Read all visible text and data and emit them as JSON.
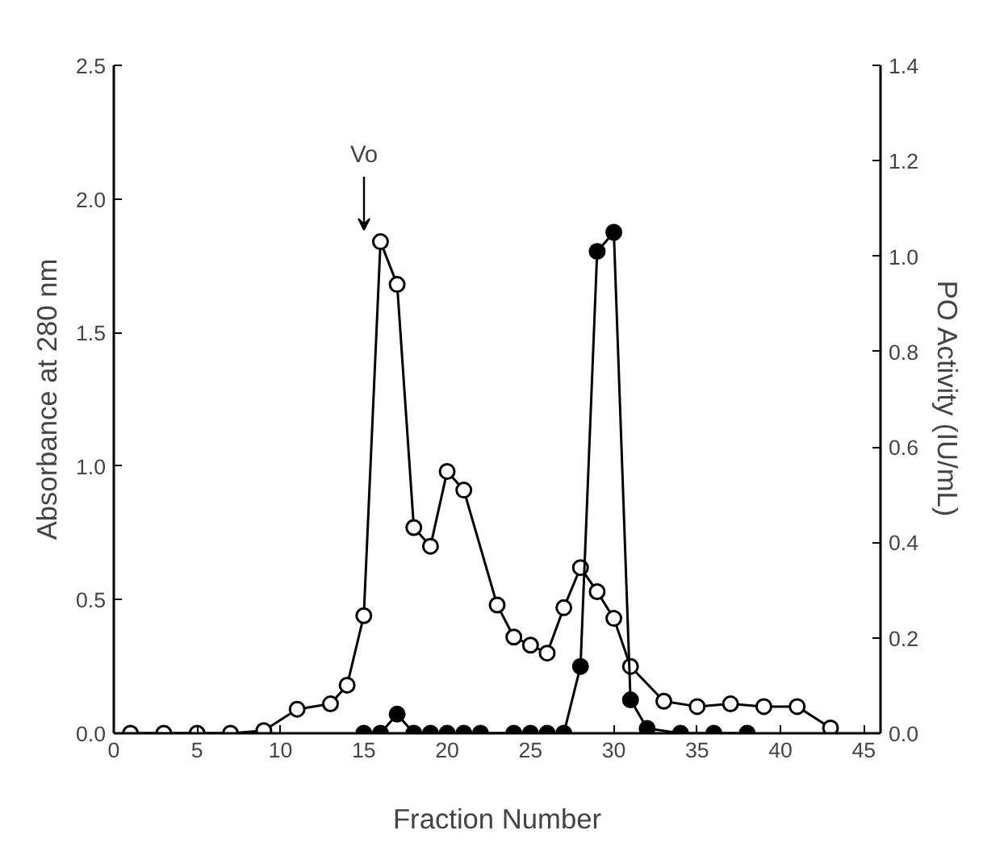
{
  "chart_data": {
    "type": "line",
    "xlabel": "Fraction Number",
    "ylabel": "Absorbance at 280 nm",
    "y2label": "PO Activity (IU/mL)",
    "xlim": [
      0,
      46
    ],
    "xticks": [
      0,
      5,
      10,
      15,
      20,
      25,
      30,
      35,
      40,
      45
    ],
    "ylim": [
      0,
      2.5
    ],
    "yticks": [
      {
        "value": 0,
        "label": "0.0"
      },
      0.5,
      {
        "value": 1,
        "label": "1.0"
      },
      1.5,
      {
        "value": 2,
        "label": "2.0"
      },
      2.5
    ],
    "y2lim": [
      0,
      1.4
    ],
    "y2ticks": [
      {
        "value": 0,
        "label": "0.0"
      },
      0.2,
      0.4,
      0.6,
      0.8,
      {
        "value": 1,
        "label": "1.0"
      },
      1.2,
      1.4
    ],
    "marker": "circle",
    "line_style": "solid",
    "annotations": [
      "Vo"
    ],
    "series": [
      {
        "color": "#000000",
        "x": [
          1,
          3,
          5,
          7,
          9,
          11,
          13,
          14,
          15,
          16,
          17,
          18,
          19,
          20,
          21,
          23,
          24,
          25,
          26,
          27,
          28,
          29,
          30,
          31,
          33,
          35,
          37,
          39,
          41,
          43
        ],
        "values": [
          0,
          0,
          0,
          0,
          0.01,
          0.09,
          0.11,
          0.18,
          0.44,
          1.84,
          1.68,
          0.77,
          0.7,
          0.98,
          0.91,
          0.48,
          0.36,
          0.33,
          0.3,
          0.47,
          0.62,
          0.53,
          0.43,
          0.25,
          0.12,
          0.1,
          0.11,
          0.1,
          0.1,
          0.02
        ]
      },
      {
        "color": "#000000",
        "axis": "y2",
        "x": [
          15,
          16,
          17,
          18,
          19,
          20,
          21,
          22,
          24,
          25,
          26,
          27,
          28,
          29,
          30,
          31,
          32,
          34,
          36,
          38
        ],
        "values": [
          0,
          0,
          0.04,
          0,
          0,
          0,
          0,
          0,
          0,
          0,
          0,
          0,
          0.14,
          1.01,
          1.05,
          0.07,
          0.01,
          0,
          0,
          0
        ]
      }
    ]
  }
}
